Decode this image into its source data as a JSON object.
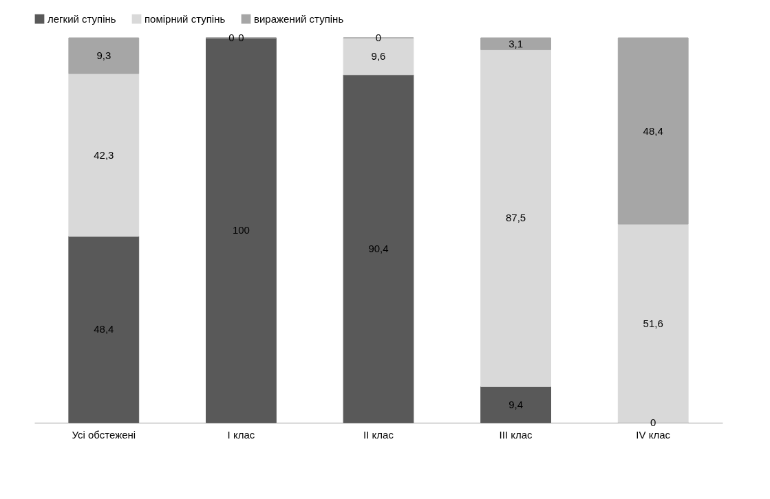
{
  "chart_data": {
    "type": "bar",
    "stacked": true,
    "legend": "top",
    "categories": [
      "Усі обстежені",
      "I клас",
      "II клас",
      "III клас",
      "IV клас"
    ],
    "series": [
      {
        "name": "легкий ступінь",
        "color": "#595959",
        "values": [
          48.4,
          100,
          90.4,
          9.4,
          0
        ],
        "value_labels": [
          "48,4",
          "100",
          "90,4",
          "9,4",
          "0"
        ]
      },
      {
        "name": "помірний ступінь",
        "color": "#d9d9d9",
        "values": [
          42.3,
          0,
          9.6,
          87.5,
          51.6
        ],
        "value_labels": [
          "42,3",
          "0",
          "9,6",
          "87,5",
          "51,6"
        ]
      },
      {
        "name": "виражений ступінь",
        "color": "#a6a6a6",
        "values": [
          9.3,
          0,
          0,
          3.1,
          48.4
        ],
        "value_labels": [
          "9,3",
          "0",
          "0",
          "3,1",
          "48,4"
        ]
      }
    ]
  }
}
